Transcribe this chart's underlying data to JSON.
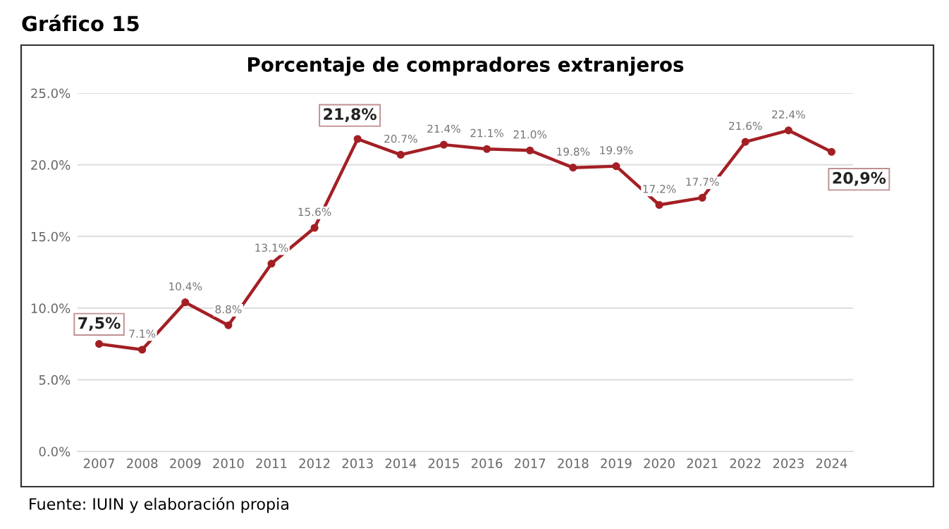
{
  "chart_data": {
    "type": "line",
    "title": "Porcentaje de compradores extranjeros",
    "subtitle": "Gráfico 15",
    "categories": [
      "2007",
      "2008",
      "2009",
      "2010",
      "2011",
      "2012",
      "2013",
      "2014",
      "2015",
      "2016",
      "2017",
      "2018",
      "2019",
      "2020",
      "2021",
      "2022",
      "2023",
      "2024"
    ],
    "series": [
      {
        "color": "#a31f24",
        "values": [
          7.5,
          7.1,
          10.4,
          8.8,
          13.1,
          15.6,
          21.8,
          20.7,
          21.4,
          21.1,
          21.0,
          19.8,
          19.9,
          17.2,
          17.7,
          21.6,
          22.4,
          20.9
        ],
        "value_labels": [
          null,
          "7.1%",
          "10.4%",
          "8.8%",
          "13.1%",
          "15.6%",
          null,
          "20.7%",
          "21.4%",
          "21.1%",
          "21.0%",
          "19.8%",
          "19.9%",
          "17.2%",
          "17.7%",
          "21.6%",
          "22.4%",
          null
        ]
      }
    ],
    "ylim": [
      0,
      25
    ],
    "yticks": [
      {
        "value": 0,
        "label": "0.0%"
      },
      {
        "value": 5,
        "label": "5.0%"
      },
      {
        "value": 10,
        "label": "10.0%"
      },
      {
        "value": 15,
        "label": "15.0%"
      },
      {
        "value": 20,
        "label": "20.0%"
      },
      {
        "value": 25,
        "label": "25.0%"
      }
    ],
    "grid": "y",
    "marker": "circle",
    "line_style": "solid",
    "legend": false,
    "annotations": [
      {
        "text": "7,5%",
        "x": "2007",
        "y": 7.5
      },
      {
        "text": "21,8%",
        "x": "2013",
        "y": 21.8
      },
      {
        "text": "20,9%",
        "x": "2024",
        "y": 20.9
      },
      "Fuente: IUIN y elaboración propia"
    ]
  }
}
